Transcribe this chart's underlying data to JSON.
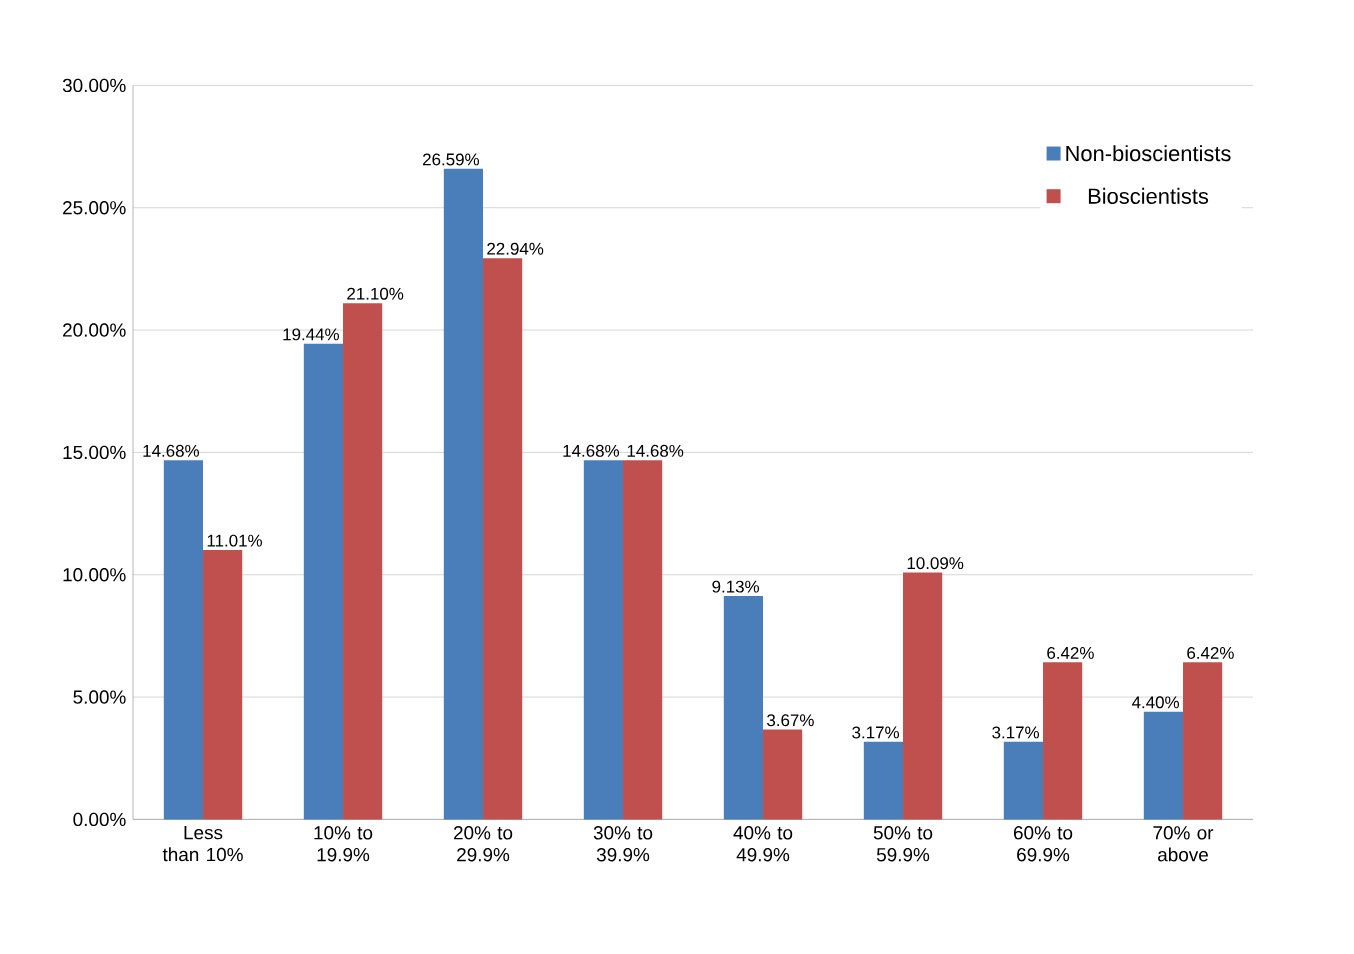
{
  "chart_data": {
    "type": "bar",
    "categories": [
      "Less than 10%",
      "10% to 19.9%",
      "20% to 29.9%",
      "30% to 39.9%",
      "40% to 49.9%",
      "50% to 59.9%",
      "60% to 69.9%",
      "70% or above"
    ],
    "series": [
      {
        "name": "Non-bioscientists",
        "color": "#4a7ebb",
        "values": [
          14.68,
          19.44,
          26.59,
          14.68,
          9.13,
          3.17,
          3.17,
          4.4
        ],
        "value_labels": [
          "14.68%",
          "19.44%",
          "26.59%",
          "14.68%",
          "9.13%",
          "3.17%",
          "3.17%",
          "4.40%"
        ]
      },
      {
        "name": "Bioscientists",
        "color": "#c0504d",
        "values": [
          11.01,
          21.1,
          22.94,
          14.68,
          3.67,
          10.09,
          6.42,
          6.42
        ],
        "value_labels": [
          "11.01%",
          "21.10%",
          "22.94%",
          "14.68%",
          "3.67%",
          "10.09%",
          "6.42%",
          "6.42%"
        ]
      }
    ],
    "ylim": [
      0,
      30
    ],
    "yticks": [
      {
        "value": 0,
        "label": "0.00%"
      },
      {
        "value": 5,
        "label": "5.00%"
      },
      {
        "value": 10,
        "label": "10.00%"
      },
      {
        "value": 15,
        "label": "15.00%"
      },
      {
        "value": 20,
        "label": "20.00%"
      },
      {
        "value": 25,
        "label": "25.00%"
      },
      {
        "value": 30,
        "label": "30.00%"
      }
    ],
    "grid": "y",
    "legend": "top right"
  }
}
